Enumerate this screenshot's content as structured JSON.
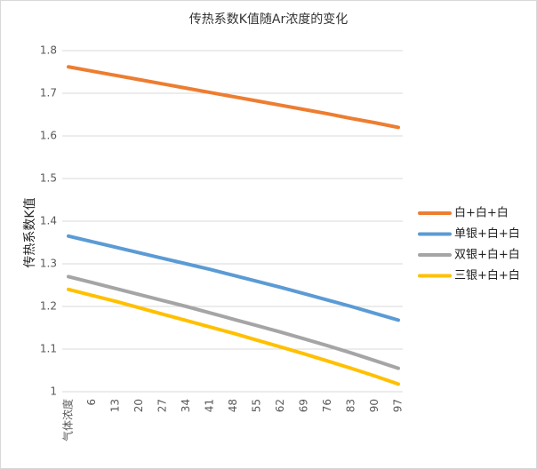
{
  "chart_data": {
    "type": "line",
    "title": "传热系数K值随Ar浓度的变化",
    "y_label": "传热系数K值",
    "categories": [
      "气体浓度",
      "6",
      "13",
      "20",
      "27",
      "34",
      "41",
      "48",
      "55",
      "62",
      "69",
      "76",
      "83",
      "90",
      "97"
    ],
    "series": [
      {
        "name": "白+白+白",
        "color": "#ed7d31",
        "values": [
          1.762,
          1.752,
          1.742,
          1.732,
          1.722,
          1.712,
          1.702,
          1.692,
          1.682,
          1.672,
          1.662,
          1.652,
          1.641,
          1.631,
          1.62
        ]
      },
      {
        "name": "单银+白+白",
        "color": "#5b9bd5",
        "values": [
          1.365,
          1.352,
          1.339,
          1.326,
          1.313,
          1.3,
          1.287,
          1.273,
          1.259,
          1.245,
          1.23,
          1.215,
          1.2,
          1.184,
          1.168
        ]
      },
      {
        "name": "双银+白+白",
        "color": "#a5a5a5",
        "values": [
          1.27,
          1.256,
          1.242,
          1.228,
          1.214,
          1.2,
          1.185,
          1.17,
          1.155,
          1.14,
          1.124,
          1.108,
          1.091,
          1.073,
          1.055
        ]
      },
      {
        "name": "三银+白+白",
        "color": "#ffc000",
        "values": [
          1.24,
          1.226,
          1.212,
          1.197,
          1.182,
          1.167,
          1.152,
          1.137,
          1.121,
          1.105,
          1.089,
          1.072,
          1.055,
          1.037,
          1.018
        ]
      }
    ],
    "ylim": [
      1,
      1.8
    ],
    "yticks": [
      1,
      1.1,
      1.2,
      1.3,
      1.4,
      1.5,
      1.6,
      1.7,
      1.8
    ],
    "grid": true,
    "legend": "right"
  }
}
